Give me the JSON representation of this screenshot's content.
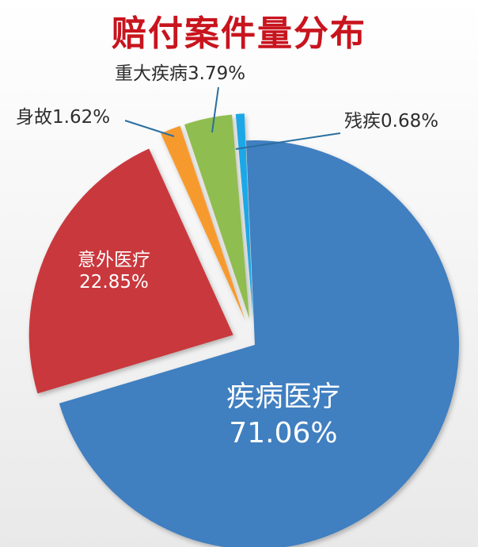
{
  "chart_data": {
    "type": "pie",
    "title": "赔付案件量分布",
    "unit": "%",
    "slices": [
      {
        "name": "疾病医疗",
        "value": 71.06,
        "label": "71.06%",
        "color": "#3f7fc0"
      },
      {
        "name": "意外医疗",
        "value": 22.85,
        "label": "22.85%",
        "color": "#c9393c"
      },
      {
        "name": "身故",
        "value": 1.62,
        "label": "1.62%",
        "color": "#f79a2e"
      },
      {
        "name": "重大疾病",
        "value": 3.79,
        "label": "3.79%",
        "color": "#8fbd4f"
      },
      {
        "name": "残疾",
        "value": 0.68,
        "label": "0.68%",
        "color": "#1fa8e6"
      }
    ]
  }
}
